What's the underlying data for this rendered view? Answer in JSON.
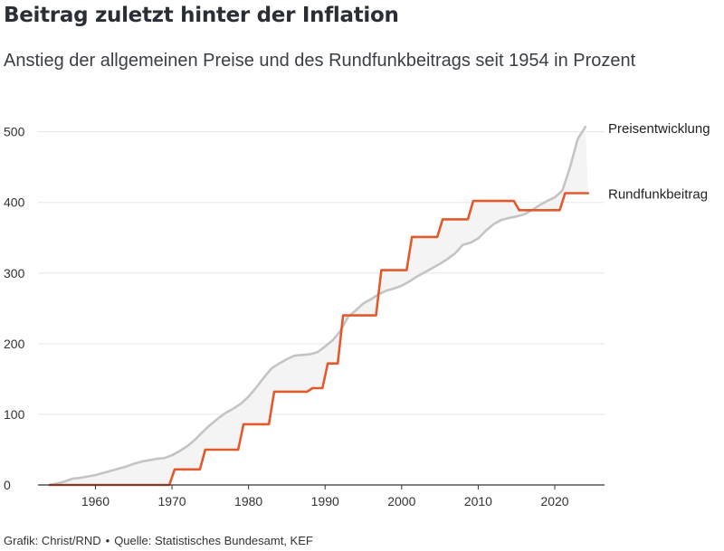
{
  "header": {
    "title": "Beitrag zuletzt hinter der Inflation",
    "subtitle": "Anstieg der allgemeinen Preise und des Rundfunkbeitrags seit 1954 in Prozent"
  },
  "footer": {
    "credit": "Grafik: Christ/RND",
    "separator": "•",
    "source": "Quelle: Statistisches Bundesamt, KEF"
  },
  "colors": {
    "preise": "#c4c4c4",
    "rundfunk": "#e25a2c",
    "fill": "#f4f4f4",
    "grid": "#e6e6e6",
    "axis": "#333333"
  },
  "chart_data": {
    "type": "line",
    "title": "Beitrag zuletzt hinter der Inflation",
    "subtitle": "Anstieg der allgemeinen Preise und des Rundfunkbeitrags seit 1954 in Prozent",
    "xlabel": "",
    "ylabel": "",
    "xlim": [
      1952.5,
      2026.5
    ],
    "ylim": [
      0,
      520
    ],
    "xticks": [
      1960,
      1970,
      1980,
      1990,
      2000,
      2010,
      2020
    ],
    "yticks": [
      0,
      100,
      200,
      300,
      400,
      500
    ],
    "grid": "horizontal",
    "legend": "direct labels at right end of lines",
    "series": [
      {
        "name": "Preisentwicklung",
        "step": false,
        "x": [
          1954,
          1955,
          1956,
          1957,
          1958,
          1959,
          1960,
          1961,
          1962,
          1963,
          1964,
          1965,
          1966,
          1967,
          1968,
          1969,
          1970,
          1971,
          1972,
          1973,
          1974,
          1975,
          1976,
          1977,
          1978,
          1979,
          1980,
          1981,
          1982,
          1983,
          1984,
          1985,
          1986,
          1987,
          1988,
          1989,
          1990,
          1991,
          1992,
          1993,
          1994,
          1995,
          1996,
          1997,
          1998,
          1999,
          2000,
          2001,
          2002,
          2003,
          2004,
          2005,
          2006,
          2007,
          2008,
          2009,
          2010,
          2011,
          2012,
          2013,
          2014,
          2015,
          2016,
          2017,
          2018,
          2019,
          2020,
          2021,
          2022,
          2023,
          2024
        ],
        "y": [
          0,
          2,
          5,
          9,
          10,
          12,
          14,
          17,
          20,
          23,
          26,
          30,
          33,
          35,
          37,
          38,
          42,
          48,
          55,
          64,
          75,
          85,
          94,
          102,
          108,
          115,
          125,
          138,
          152,
          165,
          172,
          178,
          183,
          184,
          185,
          188,
          196,
          205,
          218,
          238,
          247,
          257,
          263,
          270,
          275,
          278,
          282,
          288,
          295,
          301,
          307,
          313,
          320,
          328,
          340,
          343,
          349,
          360,
          369,
          375,
          378,
          380,
          383,
          389,
          396,
          402,
          407,
          417,
          450,
          490,
          507
        ]
      },
      {
        "name": "Rundfunkbeitrag",
        "step": true,
        "x": [
          1954,
          1969,
          1970,
          1974,
          1979,
          1983,
          1988,
          1990,
          1992,
          1997,
          2001,
          2005,
          2009,
          2015,
          2021,
          2024
        ],
        "y": [
          0,
          0,
          22,
          50,
          86,
          132,
          137,
          172,
          240,
          304,
          351,
          376,
          402,
          389,
          413,
          413
        ]
      }
    ]
  }
}
